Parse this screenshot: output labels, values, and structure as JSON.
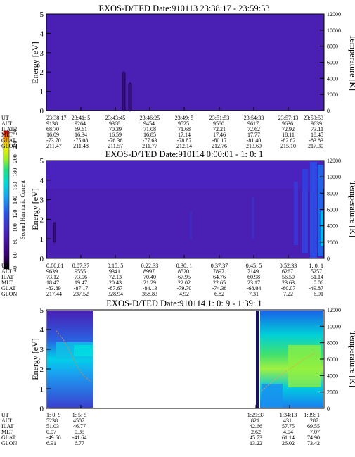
{
  "panels": [
    {
      "title": "EXOS-D/TED   Date:910113  23:38:17 - 23:59:53",
      "ylabel": "Energy [eV]",
      "y2label": "Temperature [K]",
      "eticks": [
        "0",
        "1",
        "2",
        "3",
        "4",
        "5"
      ],
      "tticks": [
        "0",
        "2000",
        "4000",
        "6000",
        "8000",
        "10000",
        "12000"
      ],
      "rows": [
        {
          "label": "UT",
          "values": [
            "23:38:17",
            "23:41: 5",
            "23:43:45",
            "23:46:25",
            "23:49: 5",
            "23:51:53",
            "23:54:33",
            "23:57:13",
            "23:59:53"
          ]
        },
        {
          "label": "ALT",
          "values": [
            "9138.",
            "9264.",
            "9368.",
            "9454.",
            "9525.",
            "9580.",
            "9617.",
            "9636.",
            "9639."
          ]
        },
        {
          "label": "ILAT",
          "values": [
            "68.70",
            "69.61",
            "70.39",
            "71.08",
            "71.68",
            "72.21",
            "72.62",
            "72.92",
            "73.11"
          ]
        },
        {
          "label": "MLT",
          "values": [
            "16.09",
            "16.34",
            "16.59",
            "16.85",
            "17.14",
            "17.46",
            "17.77",
            "18.11",
            "18.45"
          ]
        },
        {
          "label": "GLAT",
          "values": [
            "-73.70",
            "-75.08",
            "-76.36",
            "-77.63",
            "-78.87",
            "-80.17",
            "-81.40",
            "-82.62",
            "-83.83"
          ]
        },
        {
          "label": "GLON",
          "values": [
            "211.47",
            "211.48",
            "211.57",
            "211.77",
            "212.14",
            "212.76",
            "213.69",
            "215.10",
            "217.30"
          ]
        }
      ]
    },
    {
      "title": "EXOS-D/TED   Date:910114  0:00:01 - 1: 0: 1",
      "ylabel": "Energy [eV]",
      "y2label": "Temperature [K]",
      "eticks": [
        "0",
        "1",
        "2",
        "3",
        "4",
        "5"
      ],
      "tticks": [
        "0",
        "2000",
        "4000",
        "6000",
        "8000",
        "10000",
        "12000"
      ],
      "rows": [
        {
          "label": "UT",
          "values": [
            "0:00:01",
            "0:07:37",
            "0:15: 5",
            "0:22:33",
            "0:30: 1",
            "0:37:37",
            "0:45: 5",
            "0:52:33",
            "1: 0: 1"
          ]
        },
        {
          "label": "ALT",
          "values": [
            "9639.",
            "9555.",
            "9341.",
            "8997.",
            "8520.",
            "7897.",
            "7149.",
            "6267.",
            "5257."
          ]
        },
        {
          "label": "ILAT",
          "values": [
            "73.12",
            "73.06",
            "72.13",
            "70.40",
            "67.95",
            "64.76",
            "60.98",
            "56.50",
            "51.14"
          ]
        },
        {
          "label": "MLT",
          "values": [
            "18.47",
            "19.47",
            "20.43",
            "21.29",
            "22.02",
            "22.65",
            "23.17",
            "23.63",
            "0.06"
          ]
        },
        {
          "label": "GLAT",
          "values": [
            "-83.89",
            "-87.17",
            "-87.67",
            "-84.13",
            "-79.70",
            "-74.38",
            "-68.04",
            "-60.07",
            "-49.87"
          ]
        },
        {
          "label": "GLON",
          "values": [
            "217.44",
            "237.52",
            "328.94",
            "358.83",
            "4.92",
            "6.82",
            "7.31",
            "7.22",
            "6.91"
          ]
        }
      ]
    },
    {
      "title": "EXOS-D/TED   Date:910114  1: 0: 9 - 1:39: 1",
      "ylabel": "Energy [eV]",
      "y2label": "Temperature [K]",
      "eticks": [
        "0",
        "1",
        "2",
        "3",
        "4",
        "5"
      ],
      "tticks": [
        "0",
        "2000",
        "4000",
        "6000",
        "8000",
        "10000",
        "12000"
      ],
      "rows": [
        {
          "label": "UT",
          "values": [
            "1: 0: 9",
            "1: 5: 5",
            "1:29:37",
            "1:34:13",
            "1:39: 1"
          ]
        },
        {
          "label": "ALT",
          "values": [
            "5238.",
            "4507.",
            "821.",
            "431.",
            "287."
          ]
        },
        {
          "label": "ILAT",
          "values": [
            "51.03",
            "46.77",
            "42.66",
            "57.75",
            "69.55"
          ]
        },
        {
          "label": "MLT",
          "values": [
            "0.07",
            "0.35",
            "2.62",
            "4.04",
            "7.07"
          ]
        },
        {
          "label": "GLAT",
          "values": [
            "-49.66",
            "-41.64",
            "45.73",
            "61.14",
            "74.90"
          ]
        },
        {
          "label": "GLON",
          "values": [
            "6.91",
            "6.77",
            "13.22",
            "26.02",
            "73.42"
          ]
        }
      ]
    }
  ],
  "colorbar": {
    "label": "Second Harmonic Current",
    "ticks": [
      "40",
      "60",
      "80",
      "100",
      "120",
      "140",
      "160",
      "180",
      "200",
      "220",
      "240"
    ]
  },
  "chart_data": [
    {
      "type": "heatmap",
      "title": "EXOS-D/TED   Date:910113  23:38:17 - 23:59:53",
      "ylabel": "Energy [eV]",
      "y2label": "Temperature [K]",
      "ylim": [
        0,
        5
      ],
      "y2lim": [
        0,
        12000
      ],
      "x": [
        "23:38:17",
        "23:41: 5",
        "23:43:45",
        "23:46:25",
        "23:49: 5",
        "23:51:53",
        "23:54:33",
        "23:57:13",
        "23:59:53"
      ],
      "xlim_fraction": [
        0,
        1
      ],
      "grid": false
    },
    {
      "type": "heatmap",
      "title": "EXOS-D/TED   Date:910114  0:00:01 - 1: 0: 1",
      "ylabel": "Energy [eV]",
      "y2label": "Temperature [K]",
      "ylim": [
        0,
        5
      ],
      "y2lim": [
        0,
        12000
      ],
      "x": [
        "0:00:01",
        "0:07:37",
        "0:15: 5",
        "0:22:33",
        "0:30: 1",
        "0:37:37",
        "0:45: 5",
        "0:52:33",
        "1: 0: 1"
      ],
      "grid": false
    },
    {
      "type": "heatmap",
      "title": "EXOS-D/TED   Date:910114  1: 0: 9 - 1:39: 1",
      "ylabel": "Energy [eV]",
      "y2label": "Temperature [K]",
      "ylim": [
        0,
        5
      ],
      "y2lim": [
        0,
        12000
      ],
      "x": [
        "1: 0: 9",
        "1: 5: 5",
        "1:29:37",
        "1:34:13",
        "1:39: 1"
      ],
      "grid": false
    }
  ],
  "colors": {
    "background_field": "#4a1fb4",
    "colorbar_stops": [
      "#000000",
      "#3a0070",
      "#4a1fb4",
      "#2a50e0",
      "#1aa0f0",
      "#00d8d8",
      "#20e080",
      "#a0f020",
      "#f0f000",
      "#f0a000",
      "#f00000"
    ]
  }
}
